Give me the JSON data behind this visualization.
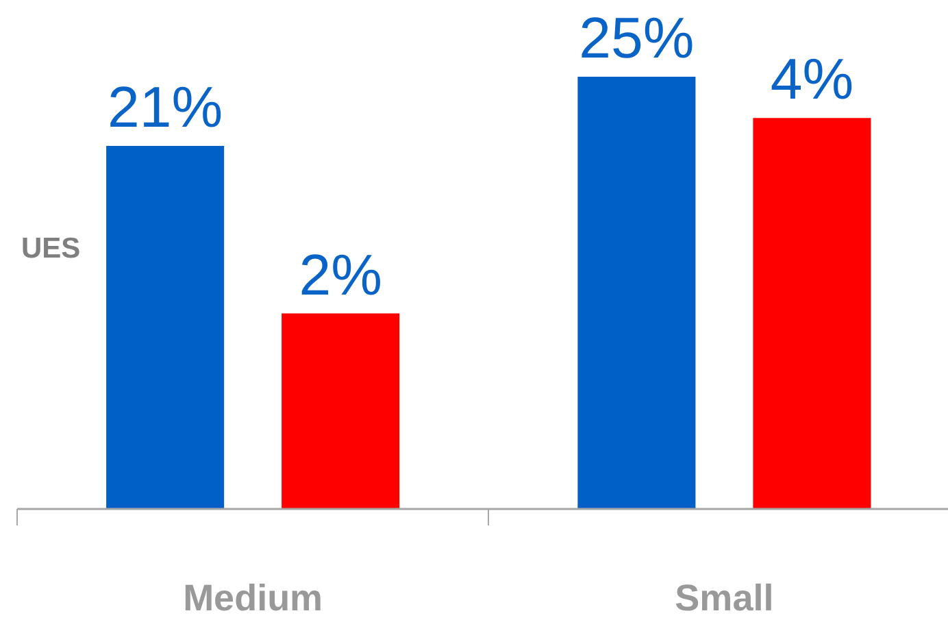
{
  "chart_data": {
    "type": "bar",
    "categories": [
      "Medium",
      "Small"
    ],
    "series": [
      {
        "color": "#0060c8",
        "values": [
          21,
          25
        ],
        "value_labels": [
          "21%",
          "25%"
        ]
      },
      {
        "color": "#ff0000",
        "values": [
          2,
          4
        ],
        "value_labels": [
          "2%",
          "4%"
        ],
        "axis": "y2"
      }
    ],
    "tick_labels": "x",
    "annotations": [
      "UES"
    ]
  }
}
